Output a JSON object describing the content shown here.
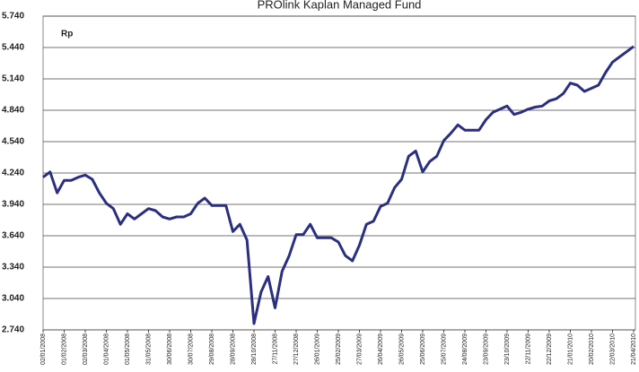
{
  "chart_data": {
    "type": "line",
    "title": "PROlink Kaplan Managed Fund",
    "y_label": "Rp",
    "categories": [
      "02/01/2008",
      null,
      null,
      "01/02/2008",
      null,
      null,
      "02/03/2008",
      null,
      null,
      "01/04/2008",
      null,
      null,
      "01/05/2008",
      null,
      null,
      "31/05/2008",
      null,
      null,
      "30/06/2008",
      null,
      null,
      "30/07/2008",
      null,
      null,
      "29/08/2008",
      null,
      null,
      "28/09/2008",
      null,
      null,
      "28/10/2008",
      null,
      null,
      "27/11/2008",
      null,
      null,
      "27/12/2008",
      null,
      null,
      "26/01/2009",
      null,
      null,
      "25/02/2009",
      null,
      null,
      "27/03/2009",
      null,
      null,
      "26/04/2009",
      null,
      null,
      "26/05/2009",
      null,
      null,
      "25/06/2009",
      null,
      null,
      "25/07/2009",
      null,
      null,
      "24/08/2009",
      null,
      null,
      "23/09/2009",
      null,
      null,
      "23/10/2009",
      null,
      null,
      "22/11/2009",
      null,
      null,
      "22/12/2009",
      null,
      null,
      "21/01/2010",
      null,
      null,
      "20/02/2010",
      null,
      null,
      "22/03/2010",
      null,
      null,
      "21/04/2010"
    ],
    "series": [
      {
        "name": "Rp",
        "color": "#2b2f7e",
        "values": [
          4.2,
          4.25,
          4.05,
          4.17,
          4.17,
          4.2,
          4.22,
          4.18,
          4.05,
          3.95,
          3.9,
          3.75,
          3.85,
          3.8,
          3.85,
          3.9,
          3.88,
          3.82,
          3.8,
          3.82,
          3.82,
          3.85,
          3.95,
          4.0,
          3.93,
          3.93,
          3.93,
          3.68,
          3.75,
          3.6,
          2.8,
          3.1,
          3.25,
          2.95,
          3.3,
          3.45,
          3.65,
          3.65,
          3.75,
          3.62,
          3.62,
          3.62,
          3.58,
          3.45,
          3.4,
          3.55,
          3.75,
          3.78,
          3.92,
          3.95,
          4.1,
          4.18,
          4.4,
          4.45,
          4.25,
          4.35,
          4.4,
          4.55,
          4.62,
          4.7,
          4.65,
          4.65,
          4.65,
          4.75,
          4.82,
          4.85,
          4.88,
          4.8,
          4.82,
          4.85,
          4.87,
          4.88,
          4.93,
          4.95,
          5.0,
          5.1,
          5.08,
          5.02,
          5.05,
          5.08,
          5.2,
          5.3,
          5.35,
          5.4,
          5.45
        ]
      }
    ],
    "ylim": [
      2.74,
      5.74
    ],
    "yticks": [
      {
        "value": 2.74,
        "label": "2.740"
      },
      {
        "value": 3.04,
        "label": "3.040"
      },
      {
        "value": 3.34,
        "label": "3.340"
      },
      {
        "value": 3.64,
        "label": "3.640"
      },
      {
        "value": 3.94,
        "label": "3.940"
      },
      {
        "value": 4.24,
        "label": "4.240"
      },
      {
        "value": 4.54,
        "label": "4.540"
      },
      {
        "value": 4.84,
        "label": "4.840"
      },
      {
        "value": 5.14,
        "label": "5.140"
      },
      {
        "value": 5.44,
        "label": "5.440"
      },
      {
        "value": 5.74,
        "label": "5.740"
      }
    ],
    "grid": true
  }
}
